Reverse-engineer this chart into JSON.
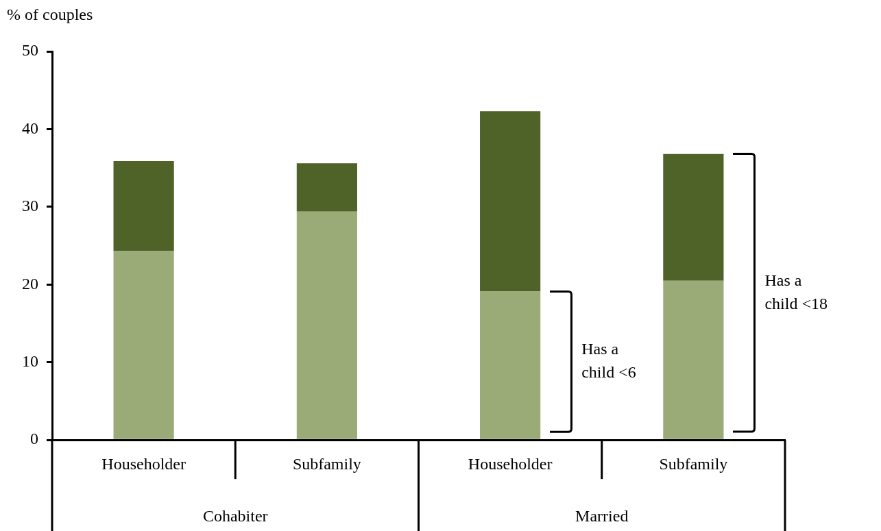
{
  "chart_data": {
    "type": "bar",
    "stacked": true,
    "ylabel": "% of couples",
    "categories": [
      "Householder",
      "Subfamily",
      "Householder",
      "Subfamily"
    ],
    "series": [
      {
        "color": "#9aab78",
        "values": [
          24.3,
          29.4,
          19.1,
          20.5
        ]
      },
      {
        "color": "#4f6228",
        "values": [
          11.6,
          6.2,
          23.2,
          16.3
        ]
      }
    ],
    "ylim": [
      0,
      50
    ],
    "yticks": [
      0,
      10,
      20,
      30,
      40,
      50
    ],
    "grid": false,
    "legend": false,
    "annotations": [
      "Cohabiter",
      "Married",
      "Has a child <6",
      "Has a child <18"
    ]
  }
}
